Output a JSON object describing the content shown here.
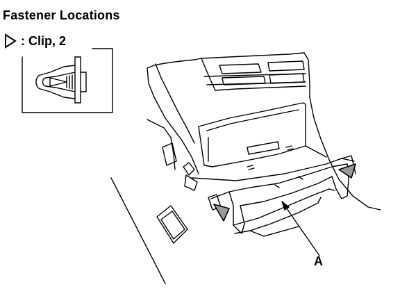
{
  "title": "Fastener Locations",
  "legend": {
    "symbol_icon": "clip-triangle-icon",
    "text": ": Clip, 2"
  },
  "callouts": [
    {
      "label": "A"
    }
  ],
  "colors": {
    "ink": "#000000",
    "paper": "#ffffff",
    "shade": "#9a9a9a"
  }
}
